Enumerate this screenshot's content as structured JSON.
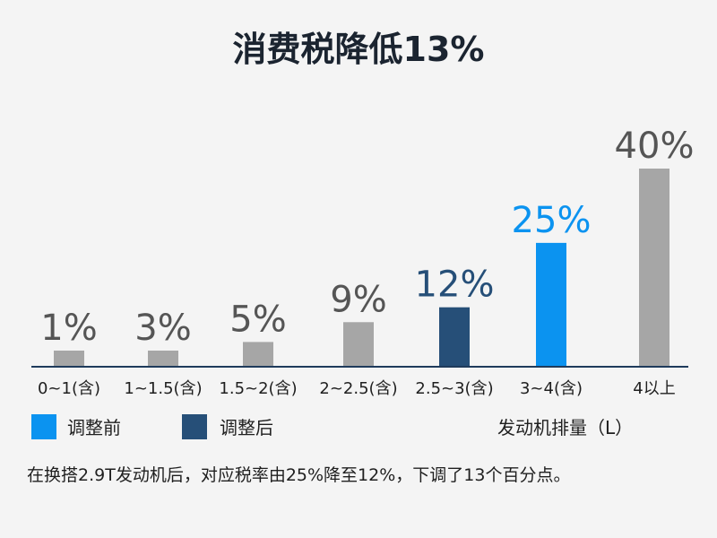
{
  "chart_data": {
    "type": "bar",
    "title": "消费税降低13%",
    "categories": [
      "0~1(含)",
      "1~1.5(含)",
      "1.5~2(含)",
      "2~2.5(含)",
      "2.5~3(含)",
      "3~4(含)",
      "4以上"
    ],
    "values": [
      1,
      3,
      5,
      9,
      12,
      25,
      40
    ],
    "value_labels": [
      "1%",
      "3%",
      "5%",
      "9%",
      "12%",
      "25%",
      "40%"
    ],
    "bar_status": [
      "other",
      "other",
      "other",
      "other",
      "after",
      "before",
      "other"
    ],
    "xlabel": "发动机排量（L）",
    "ylabel": "",
    "ylim": [
      0,
      40
    ],
    "grid": false,
    "legend": {
      "placement": "bottom-left",
      "entries": [
        {
          "key": "before",
          "name": "调整前",
          "color": "#0b93f0"
        },
        {
          "key": "after",
          "name": "调整后",
          "color": "#264f78"
        }
      ]
    },
    "colors": {
      "other": "#a6a6a6",
      "before": "#0b93f0",
      "after": "#264f78",
      "other_label": "#555555",
      "axis": "#1f3b5c"
    },
    "note": "在换搭2.9T发动机后，对应税率由25%降至12%，下调了13个百分点。"
  }
}
